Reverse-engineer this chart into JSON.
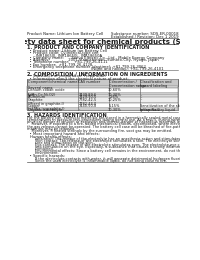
{
  "title": "Safety data sheet for chemical products (SDS)",
  "header_left": "Product Name: Lithium Ion Battery Cell",
  "header_right_1": "Substance number: SDS-ER-00018",
  "header_right_2": "Established / Revision: Dec 1 2019",
  "section1_title": "1. PRODUCT AND COMPANY IDENTIFICATION",
  "section1_lines": [
    "  • Product name: Lithium Ion Battery Cell",
    "  • Product code: Cylindrical-type cell",
    "       INR18650J, INR18650L, INR18650A",
    "  • Company name:      Sanyo Electric Co., Ltd., Mobile Energy Company",
    "  • Address:               2001, Kamishinden, Sumoto-City, Hyogo, Japan",
    "  • Telephone number:    +81-799-26-4111",
    "  • Fax number:  +81-799-26-4128",
    "  • Emergency telephone number (daytime): +81-799-26-3062",
    "                                                   (Night and holiday): +81-799-26-4101"
  ],
  "section2_title": "2. COMPOSITION / INFORMATION ON INGREDIENTS",
  "section2_intro": "  • Substance or preparation: Preparation",
  "section2_sub": "  • Information about the chemical nature of product:",
  "table_headers": [
    "Component(chemical name)",
    "CAS number",
    "Concentration /\nConcentration range",
    "Classification and\nhazard labeling"
  ],
  "table_rows": [
    [
      "Several name",
      "",
      "",
      ""
    ],
    [
      "Lithium cobalt oxide\n(LiMn-Co-Ni-O2)",
      "",
      "30-60%",
      ""
    ],
    [
      "Iron",
      "7439-89-6",
      "10-30%",
      "-"
    ],
    [
      "Aluminum",
      "7429-90-5",
      "2-6%",
      "-"
    ],
    [
      "Graphite\n(Mixed in graphite-I)\n(or Mix in graphite-I)",
      "7782-42-5\n7782-44-0",
      "10-25%",
      "-"
    ],
    [
      "Copper",
      "7440-50-8",
      "5-15%",
      "Sensitization of the skin\ngroup No.2"
    ],
    [
      "Organic electrolyte",
      "-",
      "10-30%",
      "Inflammatory liquid"
    ]
  ],
  "section3_title": "3. HAZARDS IDENTIFICATION",
  "section3_para1": "For the battery can, chemical materials are stored in a hermetically sealed metal case, designed to withstand",
  "section3_para2": "temperatures in pressure-less-procedures during normal use. As a result, during normal use, there is no",
  "section3_para3": "physical danger of ignition or explosion and thereto-danger of hazardous materials leakage.",
  "section3_para4": "    However, if exposed to a fire, added mechanical shocks, decomposed, where electric/chemical reactions occur,",
  "section3_para5": "the gas release cannot be operated. The battery cell case will be breached of fire-pathway. hazardous",
  "section3_para6": "materials may be released.",
  "section3_para7": "    Moreover, if heated strongly by the surrounding fire, soot gas may be emitted.",
  "section3_b1": "  • Most important hazard and effects:",
  "section3_b1a": "Human health effects:",
  "section3_b1a1": "       Inhalation: The release of the electrolyte has an anesthesia action and stimulates respiratory tract.",
  "section3_b1a2": "       Skin contact: The release of the electrolyte stimulates a skin. The electrolyte skin contact causes a",
  "section3_b1a3": "       sore and stimulation on the skin.",
  "section3_b1a4": "       Eye contact: The release of the electrolyte stimulates eyes. The electrolyte eye contact causes a sore",
  "section3_b1a5": "       and stimulation on the eye. Especially, a substance that causes a strong inflammation of the eye is",
  "section3_b1a6": "       contained.",
  "section3_b1a7": "       Environmental effects: Since a battery cell remains in the environment, do not throw out it into the",
  "section3_b1a8": "       environment.",
  "section3_b2": "  • Specific hazards:",
  "section3_b2a": "       If the electrolyte contacts with water, it will generate detrimental hydrogen fluoride.",
  "section3_b2b": "       Since the used electrolyte is inflammable liquid, do not bring close to fire.",
  "bg_color": "#ffffff",
  "text_color": "#1a1a1a",
  "line_color": "#555555",
  "table_header_bg": "#c8c8c8",
  "row_bg_odd": "#eeeeee",
  "row_bg_even": "#ffffff"
}
